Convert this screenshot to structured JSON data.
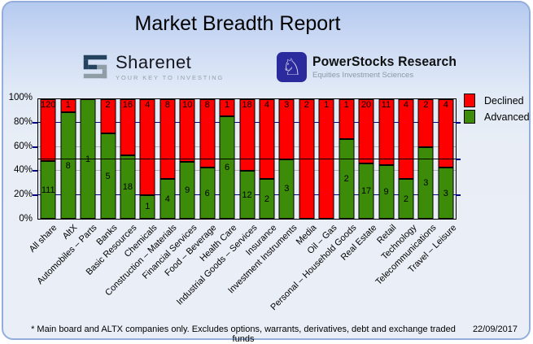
{
  "header": {
    "title": "Market Breadth Report"
  },
  "logos": {
    "sharenet": {
      "name": "Sharenet",
      "tagline": "YOUR KEY TO INVESTING"
    },
    "powerstocks": {
      "name": "PowerStocks Research",
      "tagline": "Equities Investment Sciences",
      "knight_icon": "♘"
    }
  },
  "chart_data": {
    "type": "bar",
    "stacked": true,
    "stacking": "percent",
    "title": "Market Breadth Report",
    "categories": [
      "All share",
      "AltX",
      "Automobiles – Parts",
      "Banks",
      "Basic Resources",
      "Chemicals",
      "Construction – Materials",
      "Financial Services",
      "Food – Beverage",
      "Health Care",
      "Industrial Goods – Services",
      "Insurance",
      "Investment Instruments",
      "Media",
      "Oil – Gas",
      "Personal – Household Goods",
      "Real Estate",
      "Retail",
      "Technology",
      "Telecommunications",
      "Travel – Leisure"
    ],
    "series": [
      {
        "name": "Declined",
        "color": "#FF0000",
        "values": [
          120,
          1,
          0,
          2,
          16,
          4,
          8,
          10,
          8,
          1,
          18,
          4,
          3,
          2,
          1,
          1,
          20,
          11,
          4,
          2,
          4
        ]
      },
      {
        "name": "Advanced",
        "color": "#3C8C0A",
        "values": [
          111,
          8,
          1,
          5,
          18,
          1,
          4,
          9,
          6,
          6,
          12,
          2,
          3,
          0,
          0,
          2,
          17,
          9,
          2,
          3,
          3
        ]
      }
    ],
    "y_ticks": [
      "0%",
      "20%",
      "40%",
      "60%",
      "80%",
      "100%"
    ],
    "ylim": [
      0,
      100
    ],
    "reference_line_pct": 50,
    "gridlines": {
      "navy_pcts": [
        20,
        80
      ],
      "gray_pcts": [
        40,
        60
      ]
    },
    "legend_position": "top-right"
  },
  "footer": {
    "note": "* Main board and ALTX companies only. Excludes options, warrants, derivatives, debt and exchange traded funds",
    "date": "22/09/2017"
  }
}
